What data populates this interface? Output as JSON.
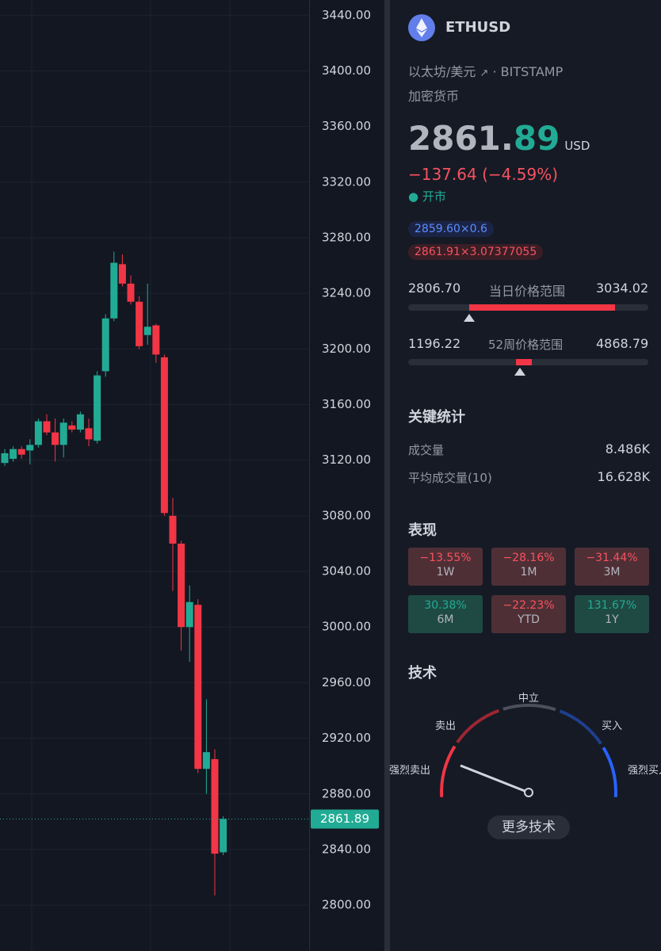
{
  "chart_data": {
    "type": "candlestick",
    "categories": [
      null,
      null,
      null,
      null,
      null,
      null,
      null,
      null,
      null,
      null,
      null,
      null,
      null,
      null,
      null,
      null,
      null,
      null,
      null,
      null,
      null,
      null,
      null,
      null,
      null,
      null,
      null
    ],
    "open": [
      3118,
      3121,
      3128,
      3127,
      3131,
      3148,
      3140,
      3131,
      3145,
      3142,
      3143,
      3134,
      3184,
      3222,
      3261,
      3247,
      3234,
      3210,
      3217,
      3194,
      3080,
      3060,
      3000,
      3016,
      2898,
      2905,
      2838
    ],
    "high": [
      3128,
      3130,
      3130,
      3135,
      3150,
      3153,
      3150,
      3150,
      3148,
      3155,
      3150,
      3184,
      3225,
      3270,
      3268,
      3253,
      3238,
      3247,
      3218,
      3196,
      3093,
      3062,
      3030,
      3020,
      2948,
      2912,
      2864
    ],
    "low": [
      3116,
      3119,
      3121,
      3117,
      3129,
      3138,
      3119,
      3122,
      3140,
      3140,
      3130,
      3132,
      3180,
      3220,
      3245,
      3232,
      3200,
      3203,
      3190,
      3080,
      3026,
      2983,
      2975,
      2895,
      2880,
      2807,
      2836
    ],
    "close": [
      3125,
      3128,
      3124,
      3131,
      3148,
      3140,
      3131,
      3147,
      3142,
      3153,
      3135,
      3181,
      3222,
      3262,
      3247,
      3234,
      3202,
      3216,
      3196,
      3082,
      3060,
      3000,
      3018,
      2898,
      2910,
      2837,
      2862
    ],
    "up_color": "#22ab94",
    "down_color": "#f23645",
    "ylim": [
      2767,
      3451
    ],
    "yticks": [
      {
        "value": 2800,
        "label": "2800.00"
      },
      {
        "value": 2840,
        "label": "2840.00"
      },
      {
        "value": 2880,
        "label": "2880.00"
      },
      {
        "value": 2920,
        "label": "2920.00"
      },
      {
        "value": 2960,
        "label": "2960.00"
      },
      {
        "value": 3000,
        "label": "3000.00"
      },
      {
        "value": 3040,
        "label": "3040.00"
      },
      {
        "value": 3080,
        "label": "3080.00"
      },
      {
        "value": 3120,
        "label": "3120.00"
      },
      {
        "value": 3160,
        "label": "3160.00"
      },
      {
        "value": 3200,
        "label": "3200.00"
      },
      {
        "value": 3240,
        "label": "3240.00"
      },
      {
        "value": 3280,
        "label": "3280.00"
      },
      {
        "value": 3320,
        "label": "3320.00"
      },
      {
        "value": 3360,
        "label": "3360.00"
      },
      {
        "value": 3400,
        "label": "3400.00"
      },
      {
        "value": 3440,
        "label": "3440.00"
      }
    ],
    "grid": true,
    "last_price": 2861.89
  },
  "panel": {
    "symbol": "ETHUSD",
    "name": "以太坊/美元",
    "exchange": "BITSTAMP",
    "category": "加密货币",
    "price_integer": "2861.",
    "price_fraction": "89",
    "currency": "USD",
    "change": "−137.64 (−4.59%)",
    "status": "开市",
    "bid": "2859.60×0.6",
    "ask": "2861.91×3.07377055",
    "day_range": {
      "low": "2806.70",
      "label": "当日价格范围",
      "high": "3034.02"
    },
    "week52_range": {
      "low": "1196.22",
      "label": "52周价格范围",
      "high": "4868.79"
    },
    "key_stats": {
      "title": "关键统计",
      "rows": [
        [
          "成交量",
          "8.486K"
        ],
        [
          "平均成交量(10)",
          "16.628K"
        ]
      ]
    },
    "performance": {
      "title": "表现",
      "tiles": [
        {
          "value": "−13.55%",
          "period": "1W",
          "trend": "down"
        },
        {
          "value": "−28.16%",
          "period": "1M",
          "trend": "down"
        },
        {
          "value": "−31.44%",
          "period": "3M",
          "trend": "down"
        },
        {
          "value": "30.38%",
          "period": "6M",
          "trend": "up"
        },
        {
          "value": "−22.23%",
          "period": "YTD",
          "trend": "down"
        },
        {
          "value": "131.67%",
          "period": "1Y",
          "trend": "up"
        }
      ]
    },
    "technicals": {
      "title": "技术",
      "labels": [
        "强烈卖出",
        "卖出",
        "中立",
        "买入",
        "强烈买入"
      ],
      "button": "更多技术"
    }
  }
}
